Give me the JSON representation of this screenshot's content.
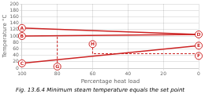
{
  "chart_data": {
    "type": "line",
    "title": "Fig. 13.6.4 Minimum steam temperature equals the set point",
    "xlabel": "Percentage heat load",
    "ylabel": "Temperature °C",
    "xlim": [
      100,
      0
    ],
    "ylim": [
      0,
      200
    ],
    "xticks": [
      100,
      80,
      60,
      40,
      20,
      0
    ],
    "yticks": [
      0,
      20,
      40,
      60,
      80,
      100,
      120,
      140,
      160,
      180,
      200
    ],
    "grid": true,
    "color": "#cc2222",
    "series": [
      {
        "x": [
          100,
          0
        ],
        "values": [
          125,
          105
        ],
        "line_style": "solid"
      },
      {
        "x": [
          100,
          0
        ],
        "values": [
          100,
          105
        ],
        "line_style": "solid"
      },
      {
        "x": [
          100,
          0
        ],
        "values": [
          15,
          70
        ],
        "line_style": "solid"
      },
      {
        "x": [
          80,
          80
        ],
        "values": [
          5,
          100
        ],
        "line_style": "dashed"
      },
      {
        "x": [
          60,
          60
        ],
        "values": [
          45,
          75
        ],
        "line_style": "dashed"
      },
      {
        "x": [
          0,
          60
        ],
        "values": [
          45,
          45
        ],
        "line_style": "dashed"
      }
    ],
    "annotations": [
      {
        "x": 100,
        "y": 125,
        "text": "A"
      },
      {
        "x": 100,
        "y": 100,
        "text": "B"
      },
      {
        "x": 100,
        "y": 15,
        "text": "C"
      },
      {
        "x": 0,
        "y": 105,
        "text": "D"
      },
      {
        "x": 0,
        "y": 70,
        "text": "E"
      },
      {
        "x": 0,
        "y": 38,
        "text": "F"
      },
      {
        "x": 80,
        "y": 5,
        "text": "G"
      },
      {
        "x": 60,
        "y": 75,
        "text": "H"
      }
    ]
  }
}
